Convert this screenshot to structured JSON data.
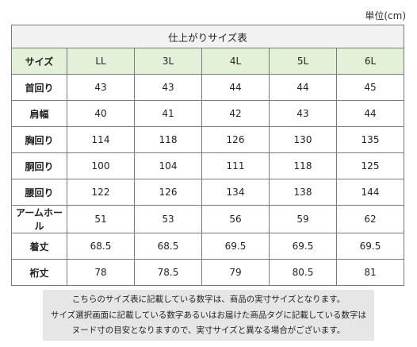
{
  "unit_label": "単位(cm)",
  "table": {
    "title": "仕上がりサイズ表",
    "header": [
      "サイズ",
      "LL",
      "3L",
      "4L",
      "5L",
      "6L"
    ],
    "rows": [
      {
        "label": "首回り",
        "values": [
          "43",
          "43",
          "44",
          "44",
          "45"
        ]
      },
      {
        "label": "肩幅",
        "values": [
          "40",
          "41",
          "42",
          "43",
          "44"
        ]
      },
      {
        "label": "胸回り",
        "values": [
          "114",
          "118",
          "126",
          "130",
          "135"
        ]
      },
      {
        "label": "胴回り",
        "values": [
          "100",
          "104",
          "111",
          "118",
          "125"
        ]
      },
      {
        "label": "腰回り",
        "values": [
          "122",
          "126",
          "134",
          "138",
          "144"
        ]
      },
      {
        "label": "アームホール",
        "values": [
          "51",
          "53",
          "56",
          "59",
          "62"
        ]
      },
      {
        "label": "着丈",
        "values": [
          "68.5",
          "68.5",
          "69.5",
          "69.5",
          "69.5"
        ]
      },
      {
        "label": "裄丈",
        "values": [
          "78",
          "78.5",
          "79",
          "80.5",
          "81"
        ]
      }
    ]
  },
  "note": {
    "lines": [
      "こちらのサイズ表に記載している数字は、商品の実寸サイズとなります。",
      "サイズ選択画面に記載している数字あるいはお届けた商品タグに記載している数字は",
      "ヌード寸の目安となりますので、実寸サイズと異なる場合がございます。"
    ]
  },
  "colors": {
    "header_bg": "#e4f1d9",
    "title_bg": "#f2f2f2",
    "note_bg": "#e6e6e6",
    "border": "#7a7a7a"
  }
}
